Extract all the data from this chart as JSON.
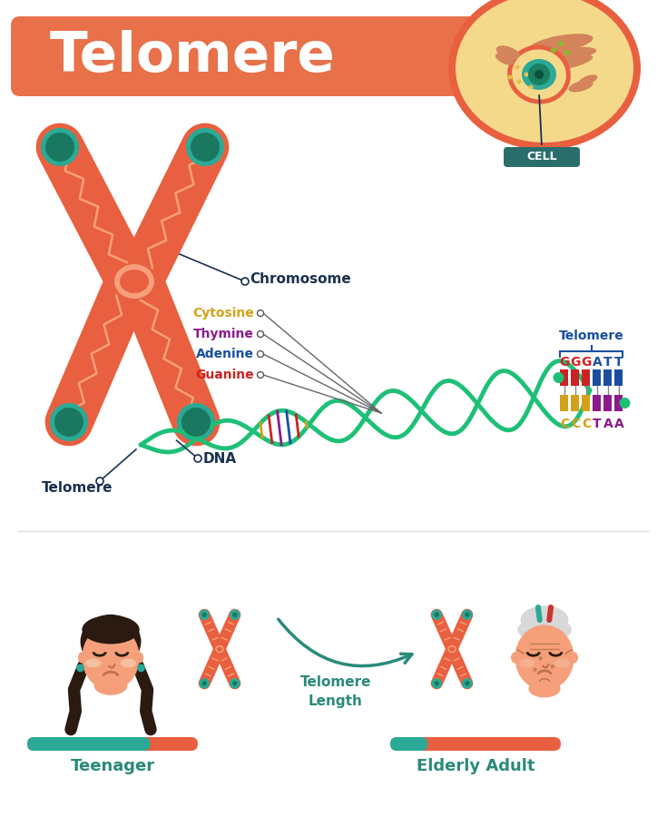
{
  "title": "Telomere",
  "title_color": "#ffffff",
  "title_bg_color": "#E8714A",
  "title_fontsize": 44,
  "bg_color": "#ffffff",
  "cell_label": "CELL",
  "cell_label_bg": "#2a6e6c",
  "chromosome_label": "Chromosome",
  "chromosome_label_color": "#1a3050",
  "dna_label": "DNA",
  "dna_label_color": "#1a3050",
  "telomere_label": "Telomere",
  "telomere_label_color": "#1a3050",
  "cytosine_color": "#d4a017",
  "thymine_color": "#8B1A8B",
  "adenine_color": "#1a4fa0",
  "guanine_color": "#cc2222",
  "dna_strand_color": "#1ec077",
  "dna_rung_color": "#aaaaaa",
  "chromosome_body_color": "#E86040",
  "chromosome_end_color": "#2aaa96",
  "chromosome_zigzag_color": "#f5a07a",
  "chromosome_center_color": "#f5a07a",
  "telomere_length_label": "Telomere\nLength",
  "telomere_length_color": "#2a8a7a",
  "teenager_label": "Teenager",
  "teenager_label_color": "#2a8a7a",
  "elderly_label": "Elderly Adult",
  "elderly_label_color": "#2a8a7a",
  "teen_bar_teal": 0.72,
  "elder_bar_teal": 0.22,
  "bar_teal": "#2aaa96",
  "bar_orange": "#E86040",
  "ggg_color": "#cc2222",
  "att_color": "#1a4fa0",
  "ccc_color": "#d4a017",
  "taa_color": "#8B1A8B",
  "telomere_region_color": "#1a4fa0"
}
